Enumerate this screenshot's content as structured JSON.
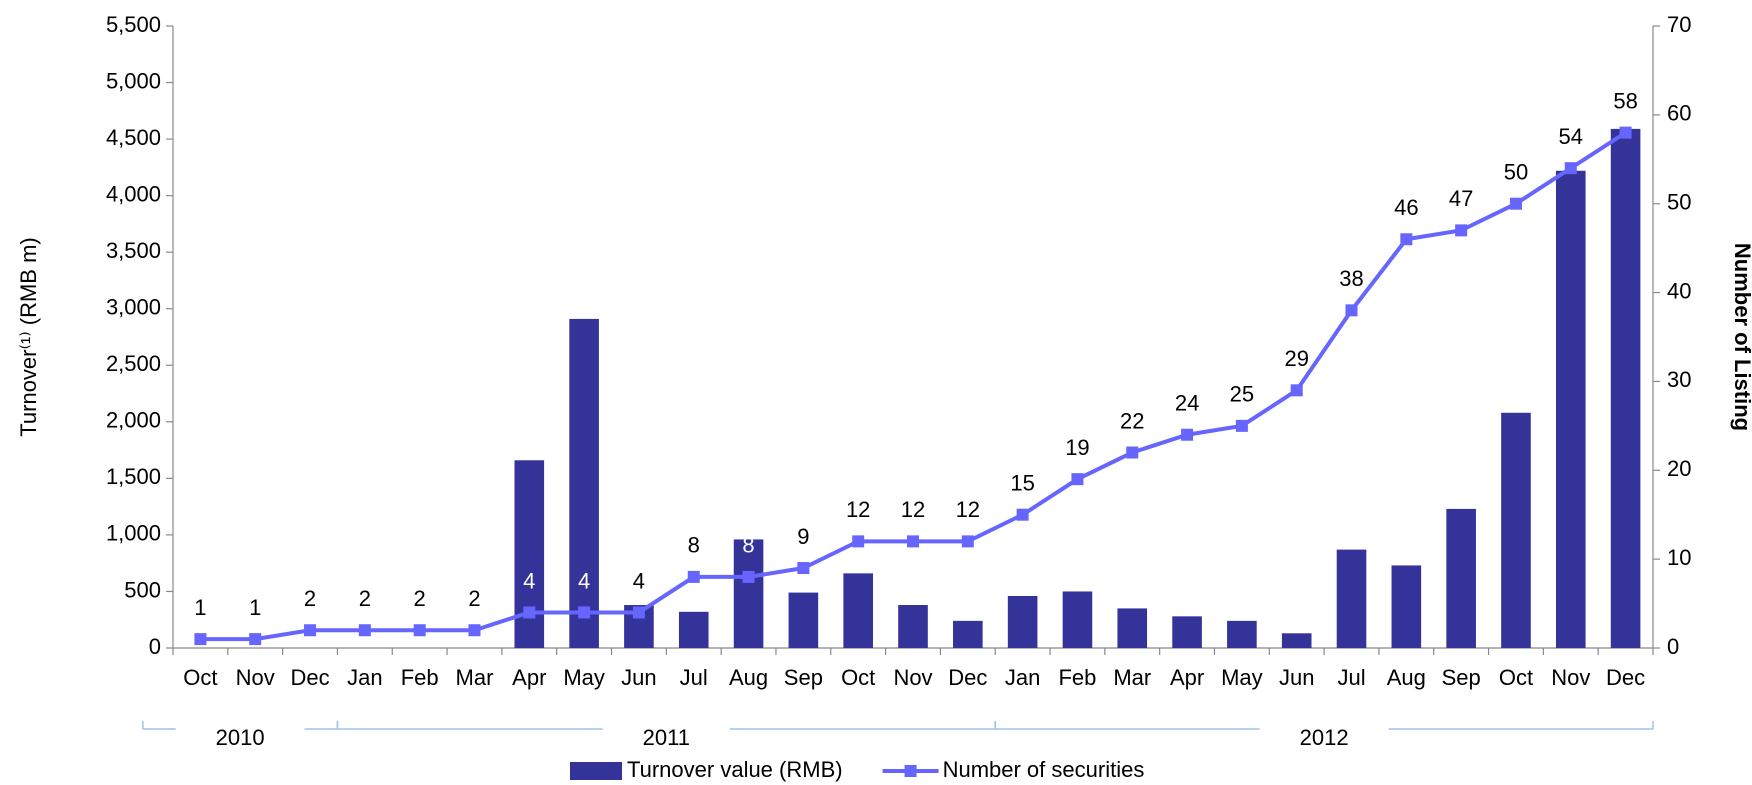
{
  "chart_data": {
    "type": "bar_line",
    "categories": [
      "Oct",
      "Nov",
      "Dec",
      "Jan",
      "Feb",
      "Mar",
      "Apr",
      "May",
      "Jun",
      "Jul",
      "Aug",
      "Sep",
      "Oct",
      "Nov",
      "Dec",
      "Jan",
      "Feb",
      "Mar",
      "Apr",
      "May",
      "Jun",
      "Jul",
      "Aug",
      "Sep",
      "Oct",
      "Nov",
      "Dec"
    ],
    "year_groups": [
      {
        "label": "2010",
        "count": 3
      },
      {
        "label": "2011",
        "count": 12
      },
      {
        "label": "2012",
        "count": 12
      }
    ],
    "series": [
      {
        "name": "Turnover value (RMB)",
        "type": "bar",
        "color": "#333399",
        "values": [
          0,
          0,
          0,
          0,
          0,
          0,
          1660,
          2910,
          380,
          320,
          960,
          490,
          660,
          380,
          240,
          460,
          500,
          350,
          280,
          240,
          130,
          870,
          730,
          1230,
          2080,
          4220,
          4590
        ]
      },
      {
        "name": "Number of securities",
        "type": "line",
        "axis": "y2",
        "color": "#6666ff",
        "values": [
          1,
          1,
          2,
          2,
          2,
          2,
          4,
          4,
          4,
          8,
          8,
          9,
          12,
          12,
          12,
          15,
          19,
          22,
          24,
          25,
          29,
          38,
          46,
          47,
          50,
          54,
          58
        ]
      }
    ],
    "ylabel": "Turnover⁽¹⁾  (RMB m)",
    "y2label": "Number of Listing",
    "ylim": [
      0,
      5500
    ],
    "yticks": [
      0,
      500,
      {
        "value": 1000,
        "label": "1,000"
      },
      {
        "value": 1500,
        "label": "1,500"
      },
      {
        "value": 2000,
        "label": "2,000"
      },
      {
        "value": 2500,
        "label": "2,500"
      },
      {
        "value": 3000,
        "label": "3,000"
      },
      {
        "value": 3500,
        "label": "3,500"
      },
      {
        "value": 4000,
        "label": "4,000"
      },
      {
        "value": 4500,
        "label": "4,500"
      },
      {
        "value": 5000,
        "label": "5,000"
      },
      {
        "value": 5500,
        "label": "5,500"
      }
    ],
    "y2lim": [
      0,
      70
    ],
    "y2ticks": [
      0,
      10,
      20,
      30,
      40,
      50,
      60,
      70
    ],
    "legend": "bottom"
  }
}
